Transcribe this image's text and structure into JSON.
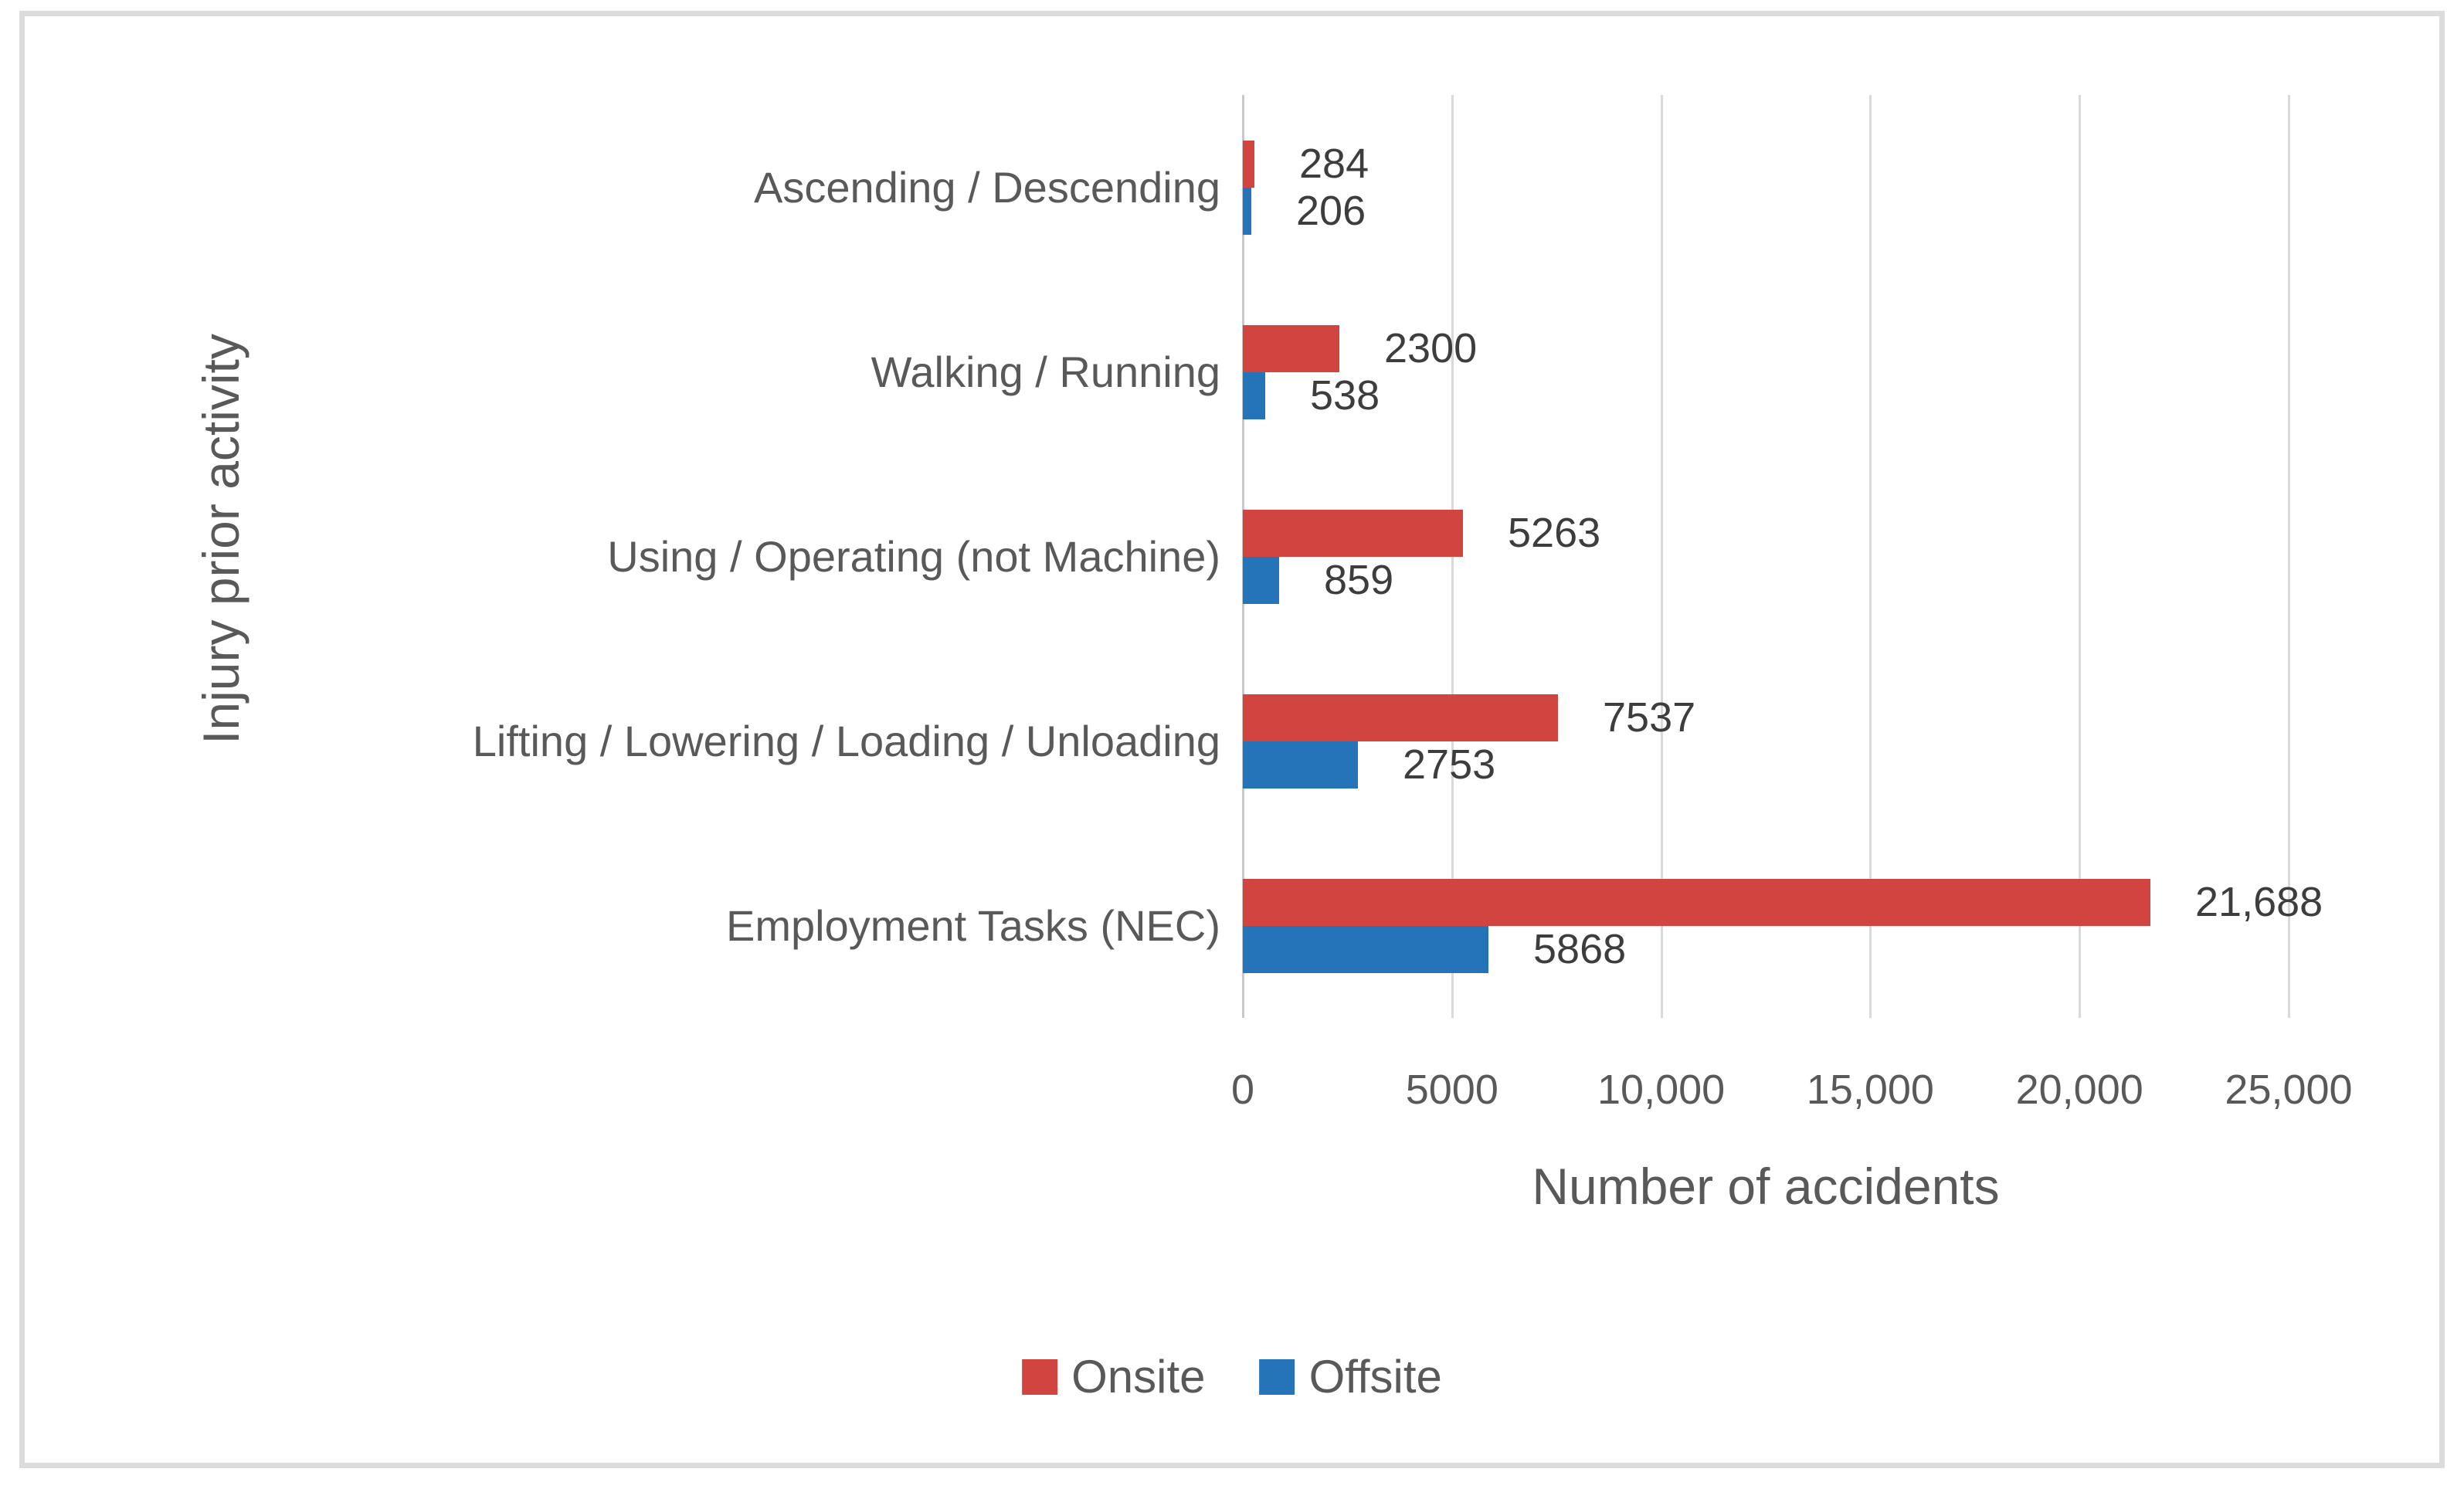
{
  "chart_data": {
    "type": "bar",
    "orientation": "horizontal",
    "xlabel": "Number of accidents",
    "ylabel": "Injury prior activity",
    "categories": [
      "Ascending / Descending",
      "Walking / Running",
      "Using / Operating (not Machine)",
      "Lifting / Lowering / Loading / Unloading",
      "Employment Tasks (NEC)"
    ],
    "series": [
      {
        "name": "Onsite",
        "color": "#d24440",
        "values": [
          284,
          2300,
          5263,
          7537,
          21688
        ],
        "labels": [
          "284",
          "2300",
          "5263",
          "7537",
          "21,688"
        ]
      },
      {
        "name": "Offsite",
        "color": "#2574b9",
        "values": [
          206,
          538,
          859,
          2753,
          5868
        ],
        "labels": [
          "206",
          "538",
          "859",
          "2753",
          "5868"
        ]
      }
    ],
    "xlim": [
      0,
      25000
    ],
    "xticks": [
      {
        "value": 0,
        "label": "0"
      },
      {
        "value": 5000,
        "label": "5000"
      },
      {
        "value": 10000,
        "label": "10,000"
      },
      {
        "value": 15000,
        "label": "15,000"
      },
      {
        "value": 20000,
        "label": "20,000"
      },
      {
        "value": 25000,
        "label": "25,000"
      }
    ],
    "grid": "vertical-only",
    "legend_position": "bottom-center",
    "bar_label_position": "outside-end"
  },
  "colors": {
    "onsite": "#d24440",
    "offsite": "#2574b9",
    "gridline": "#d9d9d9",
    "axis_line": "#c9c9c9",
    "label_text": "#595959",
    "value_text": "#3d3d3d",
    "frame_border": "#dcdcdc",
    "background": "#ffffff"
  }
}
